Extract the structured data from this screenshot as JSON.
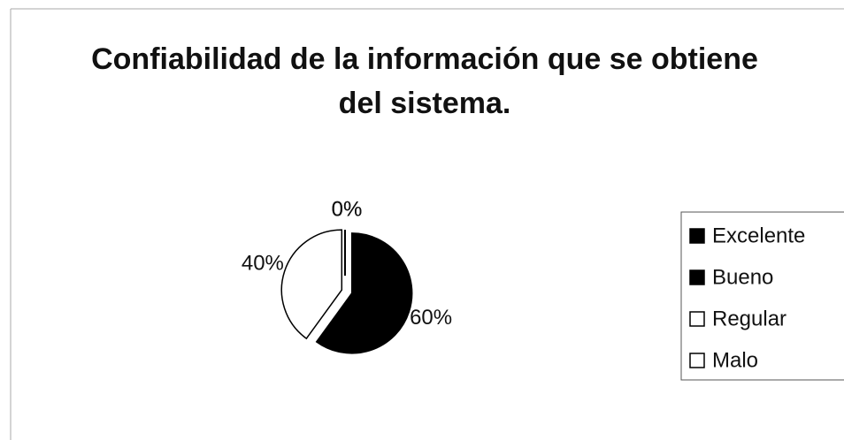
{
  "chart_data": {
    "type": "pie",
    "title": "Confiabilidad de la información que se obtiene del sistema.",
    "categories": [
      "Excelente",
      "Bueno",
      "Regular",
      "Malo"
    ],
    "values": [
      0,
      60,
      40,
      0
    ],
    "value_labels": [
      "0%",
      "60%",
      "40%",
      "0%"
    ],
    "colors": [
      "#000000",
      "#000000",
      "#ffffff",
      "#ffffff"
    ],
    "legend": "right"
  }
}
